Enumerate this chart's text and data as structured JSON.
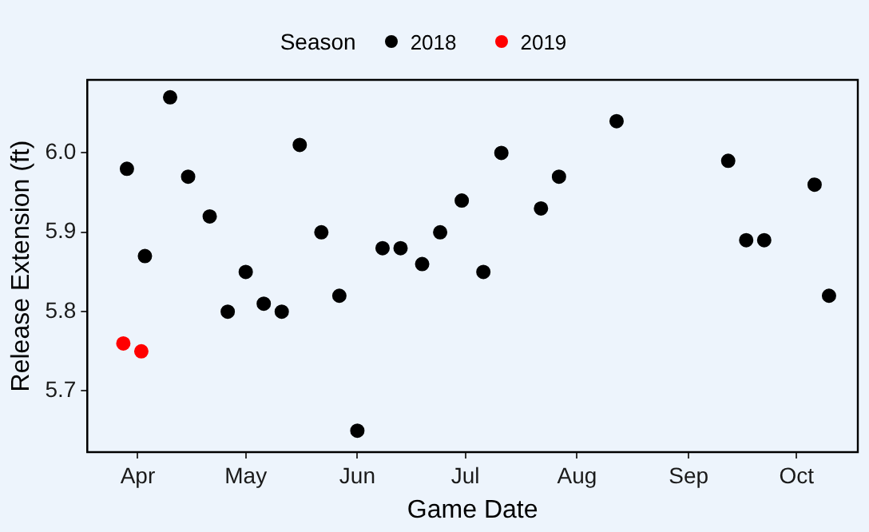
{
  "chart_data": {
    "type": "scatter",
    "xlabel": "Game Date",
    "ylabel": "Release Extension (ft)",
    "legend_title": "Season",
    "legend": "top",
    "grid": false,
    "marker": "circle",
    "xlim": [
      "--03-18",
      "--10-18"
    ],
    "ylim": [
      5.623,
      6.092
    ],
    "xticks": [
      {
        "value": "--04-01",
        "label": "Apr"
      },
      {
        "value": "--05-01",
        "label": "May"
      },
      {
        "value": "--06-01",
        "label": "Jun"
      },
      {
        "value": "--07-01",
        "label": "Jul"
      },
      {
        "value": "--08-01",
        "label": "Aug"
      },
      {
        "value": "--09-01",
        "label": "Sep"
      },
      {
        "value": "--10-01",
        "label": "Oct"
      }
    ],
    "yticks": [
      {
        "value": 5.7,
        "label": "5.7"
      },
      {
        "value": 5.8,
        "label": "5.8"
      },
      {
        "value": 5.9,
        "label": "5.9"
      },
      {
        "value": 6.0,
        "label": "6.0"
      }
    ],
    "series": [
      {
        "name": "2018",
        "color": "#000000",
        "x": [
          "--03-29",
          "--04-03",
          "--04-10",
          "--04-15",
          "--04-21",
          "--04-26",
          "--05-01",
          "--05-06",
          "--05-11",
          "--05-16",
          "--05-22",
          "--05-27",
          "--06-01",
          "--06-08",
          "--06-13",
          "--06-19",
          "--06-24",
          "--06-30",
          "--07-06",
          "--07-11",
          "--07-22",
          "--07-27",
          "--08-12",
          "--09-12",
          "--09-17",
          "--09-22",
          "--10-06",
          "--10-10"
        ],
        "values": [
          5.98,
          5.87,
          6.07,
          5.97,
          5.92,
          5.8,
          5.85,
          5.81,
          5.8,
          6.01,
          5.9,
          5.82,
          5.65,
          5.88,
          5.88,
          5.86,
          5.9,
          5.94,
          5.85,
          6.0,
          5.93,
          5.97,
          6.04,
          5.99,
          5.89,
          5.89,
          5.96,
          5.82
        ]
      },
      {
        "name": "2019",
        "color": "#ff0000",
        "x": [
          "--03-28",
          "--04-02"
        ],
        "values": [
          5.76,
          5.75
        ]
      }
    ]
  }
}
